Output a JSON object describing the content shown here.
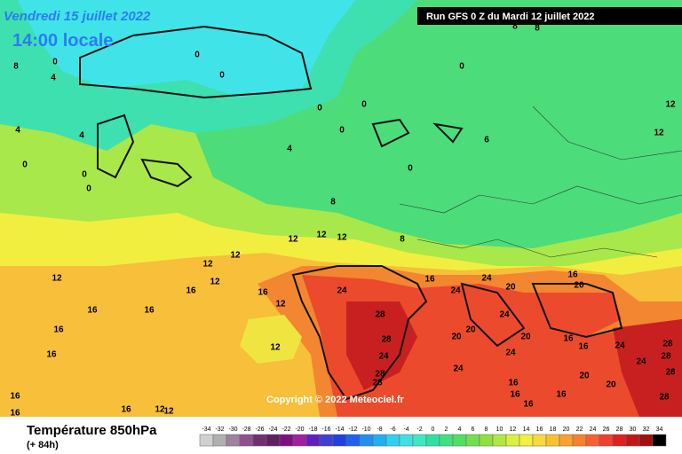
{
  "header": {
    "valid_date": "Vendredi 15 juillet 2022",
    "local_time": "14:00 locale",
    "run": "Run GFS 0 Z du Mardi 12 juillet 2022"
  },
  "copyright": "Copyright © 2022 Meteociel.fr",
  "footer": {
    "parameter": "Température 850hPa",
    "lead_time": "(+ 84h)"
  },
  "legend": {
    "labels": [
      -34,
      -32,
      -30,
      -28,
      -26,
      -24,
      -22,
      -20,
      -18,
      -16,
      -14,
      -12,
      -10,
      -8,
      -6,
      -4,
      -2,
      0,
      2,
      4,
      6,
      8,
      10,
      12,
      14,
      16,
      18,
      20,
      22,
      24,
      26,
      28,
      30,
      32,
      34
    ],
    "colors": [
      "#d0d0d0",
      "#b0b0b0",
      "#a080a0",
      "#905090",
      "#703070",
      "#602060",
      "#801080",
      "#a020a0",
      "#6020c0",
      "#4040d0",
      "#2040e0",
      "#2060f0",
      "#2090f0",
      "#20b0f0",
      "#30d0f0",
      "#40e0e0",
      "#40e8c0",
      "#30e0a0",
      "#40e080",
      "#50e060",
      "#70e050",
      "#90e040",
      "#b0e840",
      "#d8f040",
      "#f0f040",
      "#f8d840",
      "#f8c030",
      "#f8a030",
      "#f88030",
      "#f86030",
      "#f04030",
      "#e02020",
      "#c01818",
      "#a01010",
      "#000000"
    ]
  },
  "contour_labels": [
    8,
    0,
    4,
    4,
    4,
    0,
    0,
    0,
    0,
    0,
    0,
    0,
    0,
    4,
    0,
    6,
    0,
    8,
    8,
    8,
    8,
    12,
    12,
    12,
    12,
    12,
    12,
    12,
    16,
    16,
    12,
    16,
    16,
    16,
    16,
    12,
    24,
    28,
    28,
    24,
    28,
    28,
    16,
    24,
    24,
    20,
    16,
    20,
    24,
    20,
    20,
    20,
    24,
    24,
    16,
    16,
    16,
    16,
    20,
    20,
    24,
    24,
    28,
    28,
    28,
    28,
    16,
    16,
    12,
    12,
    16,
    16,
    12,
    12,
    16
  ]
}
